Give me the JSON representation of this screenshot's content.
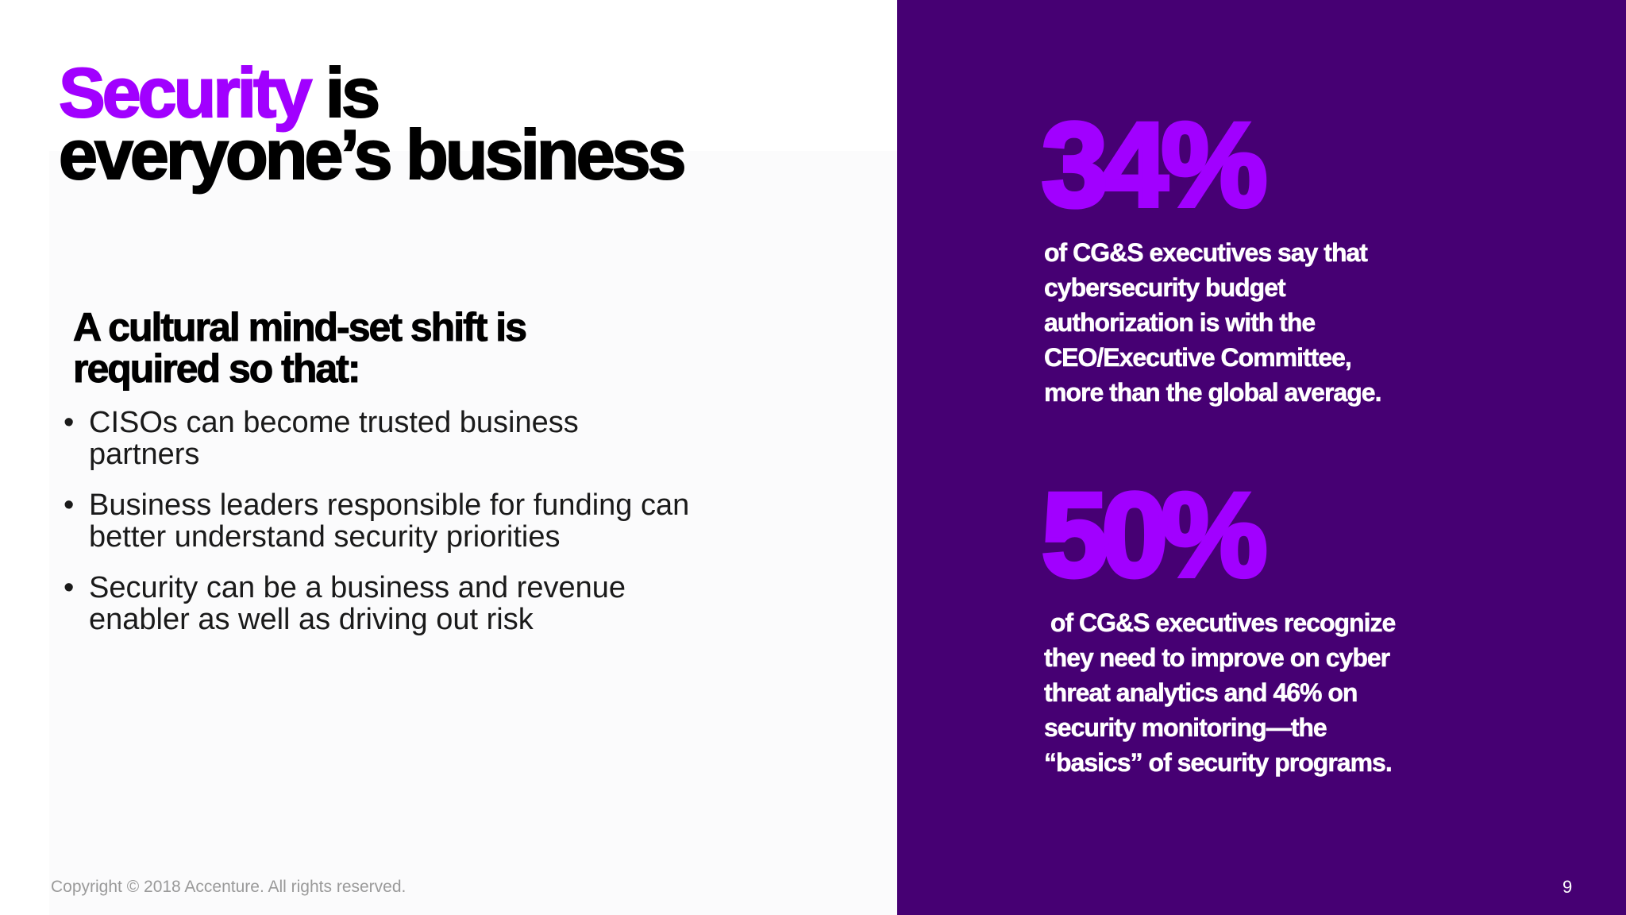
{
  "slide": {
    "title": {
      "accent": "Security",
      "line1_rest": " is",
      "line2": "everyone’s business"
    },
    "subheading": {
      "line1": "A cultural mind-set shift is",
      "line2": "required so that:"
    },
    "bullet_symbol": "•",
    "bullets": [
      {
        "line1": "CISOs can become trusted business",
        "line2": "partners"
      },
      {
        "line1": "Business leaders responsible for funding can",
        "line2": "better understand security priorities"
      },
      {
        "line1": "Security can be a business and revenue",
        "line2": "enabler as well as driving out risk"
      }
    ],
    "copyright": "Copyright © 2018 Accenture. All rights reserved.",
    "page_number": "9"
  },
  "stats": [
    {
      "value": "34%",
      "lines": [
        "of CG&S executives say that",
        "cybersecurity budget",
        "authorization is with the",
        "CEO/Executive Committee,",
        "more than the global average."
      ]
    },
    {
      "value": "50%",
      "lines": [
        " of CG&S executives recognize",
        "they need to improve on cyber",
        "threat analytics and 46% on",
        "security monitoring—the",
        "“basics” of security programs."
      ]
    }
  ],
  "colors": {
    "accent_purple": "#a100ff",
    "panel_purple": "#460073",
    "text_black": "#000000",
    "text_white": "#ffffff",
    "copyright_gray": "#9a9a9a"
  }
}
